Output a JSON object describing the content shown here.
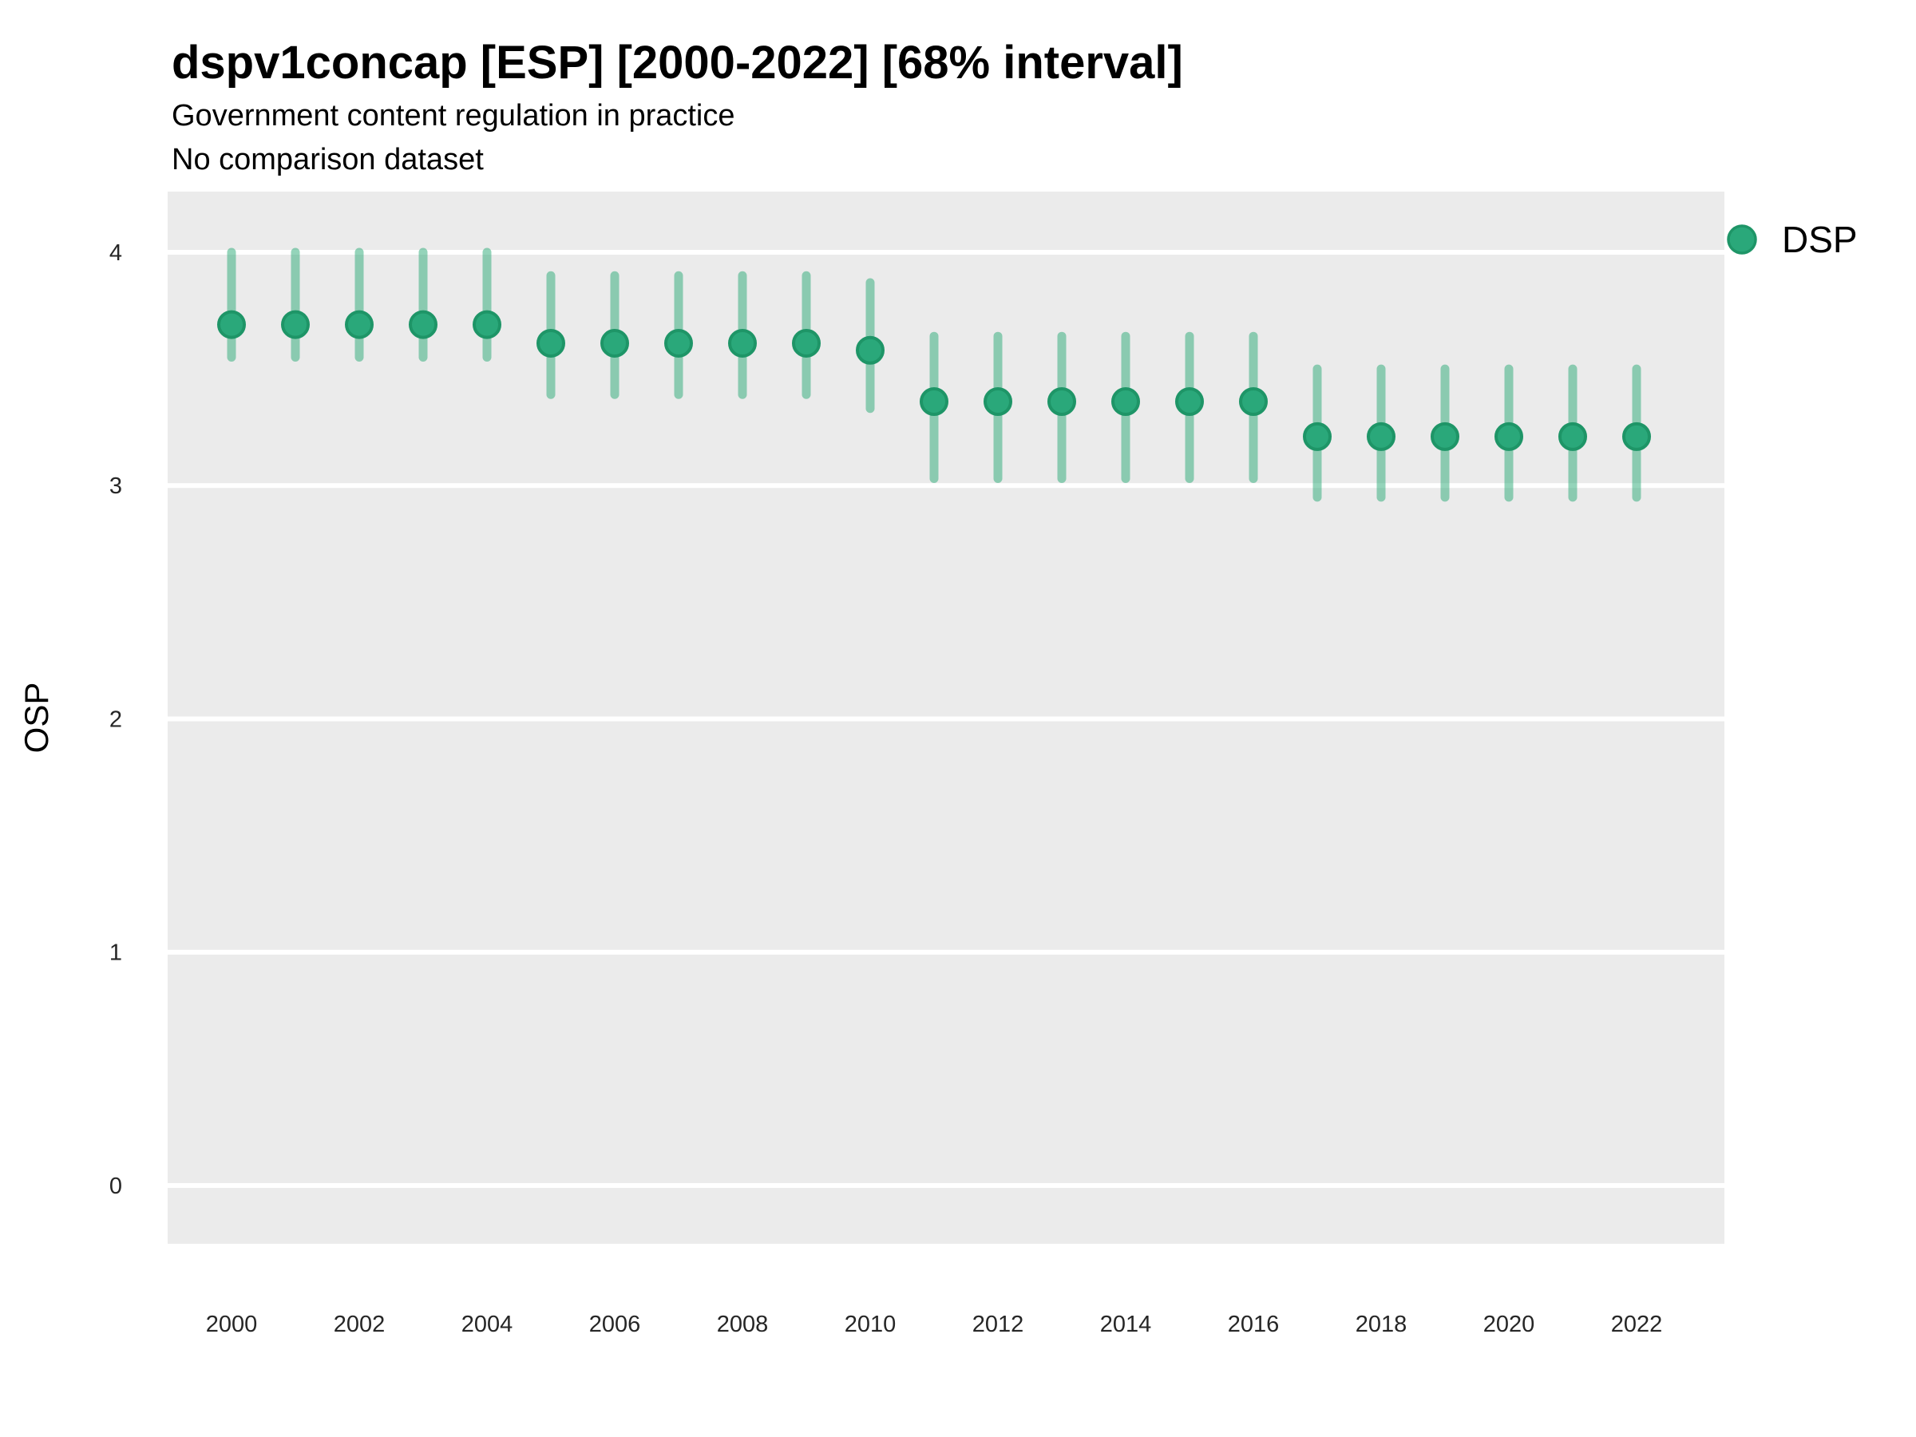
{
  "header": {
    "title": "dspv1concap [ESP] [2000-2022] [68% interval]",
    "subtitle_line1": "Government content regulation in practice",
    "subtitle_line2": "No comparison dataset"
  },
  "legend": {
    "position": "right",
    "items": [
      {
        "label": "DSP",
        "color": "#2aa87a"
      }
    ]
  },
  "chart_data": {
    "type": "scatter",
    "title": "dspv1concap [ESP] [2000-2022] [68% interval]",
    "subtitle": [
      "Government content regulation in practice",
      "No comparison dataset"
    ],
    "xlabel": "",
    "ylabel": "OSP",
    "interval_label": "68% interval",
    "x": [
      2000,
      2001,
      2002,
      2003,
      2004,
      2005,
      2006,
      2007,
      2008,
      2009,
      2010,
      2011,
      2012,
      2013,
      2014,
      2015,
      2016,
      2017,
      2018,
      2019,
      2020,
      2021,
      2022
    ],
    "series": [
      {
        "name": "DSP",
        "points": [
          3.69,
          3.69,
          3.69,
          3.69,
          3.69,
          3.61,
          3.61,
          3.61,
          3.61,
          3.61,
          3.58,
          3.36,
          3.36,
          3.36,
          3.36,
          3.36,
          3.36,
          3.21,
          3.21,
          3.21,
          3.21,
          3.21,
          3.21
        ],
        "interval_low": [
          3.55,
          3.55,
          3.55,
          3.55,
          3.55,
          3.39,
          3.39,
          3.39,
          3.39,
          3.39,
          3.33,
          3.03,
          3.03,
          3.03,
          3.03,
          3.03,
          3.03,
          2.95,
          2.95,
          2.95,
          2.95,
          2.95,
          2.95
        ],
        "interval_high": [
          4.0,
          4.0,
          4.0,
          4.0,
          4.0,
          3.9,
          3.9,
          3.9,
          3.9,
          3.9,
          3.87,
          3.64,
          3.64,
          3.64,
          3.64,
          3.64,
          3.64,
          3.5,
          3.5,
          3.5,
          3.5,
          3.5,
          3.5
        ]
      }
    ],
    "ylim": [
      -0.25,
      4.26
    ],
    "yticks": [
      0,
      1,
      2,
      3,
      4
    ],
    "xticks": [
      2000,
      2002,
      2004,
      2006,
      2008,
      2010,
      2012,
      2014,
      2016,
      2018,
      2020,
      2022
    ],
    "grid": "horizontal-major-only",
    "legend_position": "right",
    "colors": {
      "point": "#2aa87a",
      "point_stroke": "#1e9567",
      "interval": "#2aaa76",
      "interval_alpha": 0.5,
      "panel_background": "#ebebeb",
      "gridline": "#ffffff",
      "tick_label": "#262626"
    }
  }
}
